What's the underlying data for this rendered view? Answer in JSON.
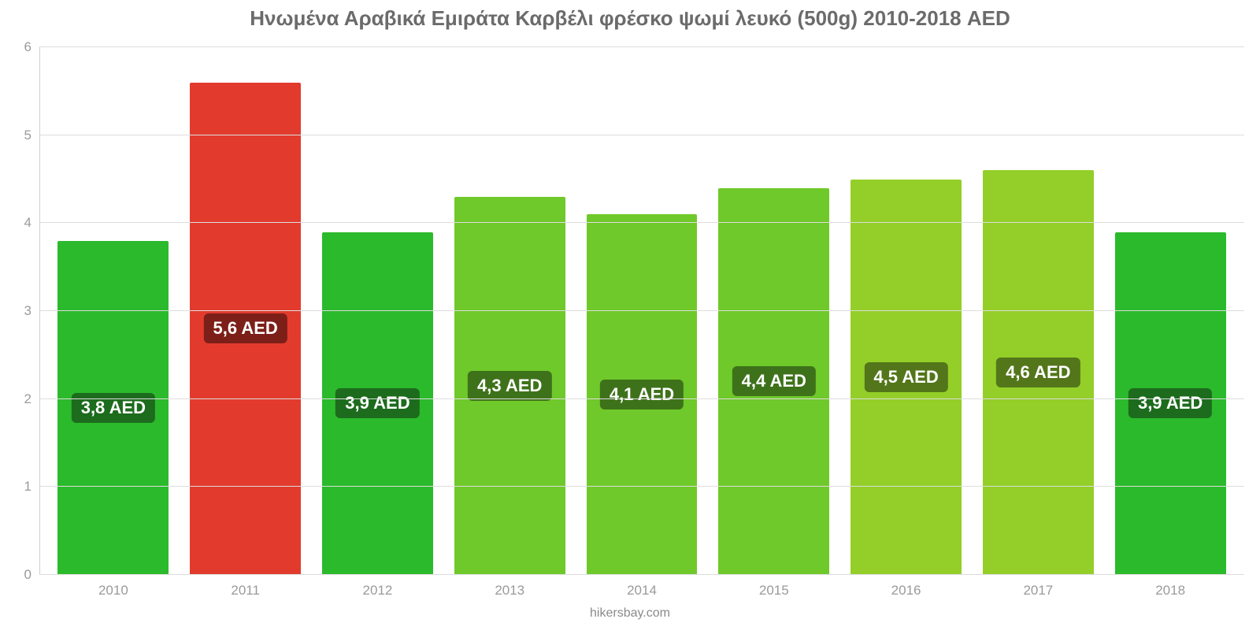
{
  "chart": {
    "type": "bar",
    "title": "Ηνωμένα Αραβικά Εμιράτα Καρβέλι φρέσκο ψωμί λευκό (500g) 2010-2018 AED",
    "title_color": "#6b6b6b",
    "title_fontsize": 26,
    "title_fontweight": 700,
    "footer": "hikersbay.com",
    "footer_color": "#8a8a8a",
    "footer_fontsize": 16,
    "background_color": "#ffffff",
    "plot_background": "#ffffff",
    "grid_color": "#dddddd",
    "axis_line_color": "#cfcfcf",
    "ytick_color": "#9a9a9a",
    "xtick_color": "#9a9a9a",
    "ytick_fontsize": 17,
    "xtick_fontsize": 17,
    "ylim": [
      0,
      6
    ],
    "yticks": [
      0,
      1,
      2,
      3,
      4,
      5,
      6
    ],
    "bar_width_pct": 84,
    "bar_label_fontsize": 22,
    "categories": [
      "2010",
      "2011",
      "2012",
      "2013",
      "2014",
      "2015",
      "2016",
      "2017",
      "2018"
    ],
    "values": [
      3.8,
      5.6,
      3.9,
      4.3,
      4.1,
      4.4,
      4.5,
      4.6,
      3.9
    ],
    "value_labels": [
      "3,8 AED",
      "5,6 AED",
      "3,9 AED",
      "4,3 AED",
      "4,1 AED",
      "4,4 AED",
      "4,5 AED",
      "4,6 AED",
      "3,9 AED"
    ],
    "bar_colors": [
      "#2bba2b",
      "#e23b2e",
      "#2bba2b",
      "#6fc92a",
      "#6fc92a",
      "#6fc92a",
      "#93cf28",
      "#93cf28",
      "#2bba2b"
    ],
    "label_bg_colors": [
      "#1d6b1d",
      "#7c1f18",
      "#1d6b1d",
      "#3e721a",
      "#3e721a",
      "#3e721a",
      "#53761a",
      "#53761a",
      "#1d6b1d"
    ]
  }
}
